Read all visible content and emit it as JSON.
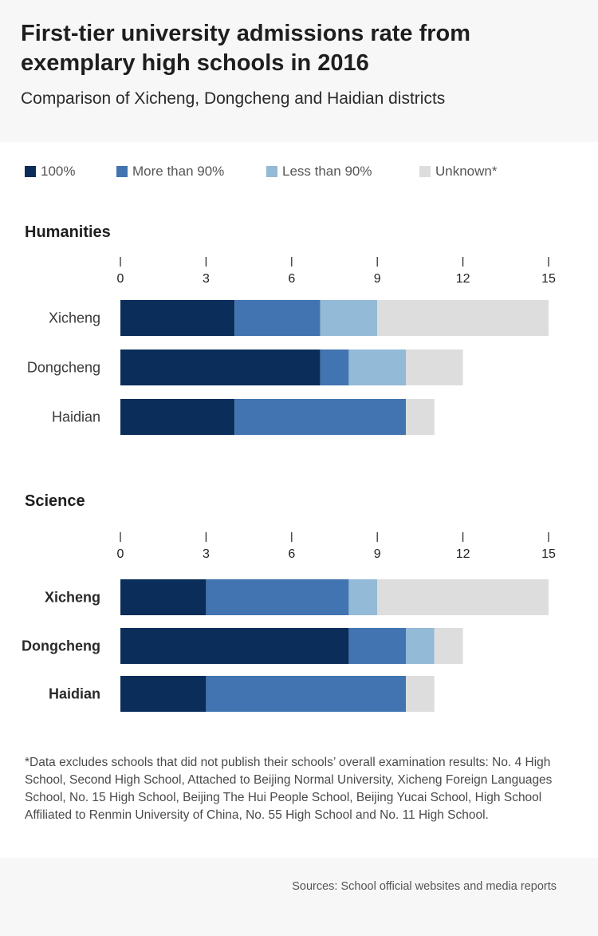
{
  "header": {
    "title": "First-tier university admissions rate from exemplary high schools in 2016",
    "subtitle": "Comparison of Xicheng, Dongcheng and Haidian districts"
  },
  "legend": [
    {
      "label": "100%",
      "color": "#0b2d59"
    },
    {
      "label": "More than 90%",
      "color": "#4174b0"
    },
    {
      "label": "Less than 90%",
      "color": "#93bad6"
    },
    {
      "label": "Unknown*",
      "color": "#dddddd"
    }
  ],
  "chart_data": [
    {
      "type": "bar",
      "orientation": "horizontal",
      "stacked": true,
      "title": "Humanities",
      "categories": [
        "Xicheng",
        "Dongcheng",
        "Haidian"
      ],
      "series": [
        {
          "name": "100%",
          "values": [
            4,
            7,
            4
          ]
        },
        {
          "name": "More than 90%",
          "values": [
            3,
            1,
            6
          ]
        },
        {
          "name": "Less than 90%",
          "values": [
            2,
            2,
            0
          ]
        },
        {
          "name": "Unknown*",
          "values": [
            6,
            2,
            1
          ]
        }
      ],
      "xlim": [
        0,
        15
      ],
      "xticks": [
        0,
        3,
        6,
        9,
        12,
        15
      ],
      "grid": false,
      "legend_position": "top"
    },
    {
      "type": "bar",
      "orientation": "horizontal",
      "stacked": true,
      "title": "Science",
      "categories": [
        "Xicheng",
        "Dongcheng",
        "Haidian"
      ],
      "series": [
        {
          "name": "100%",
          "values": [
            3,
            8,
            3
          ]
        },
        {
          "name": "More than 90%",
          "values": [
            5,
            2,
            7
          ]
        },
        {
          "name": "Less than 90%",
          "values": [
            1,
            1,
            0
          ]
        },
        {
          "name": "Unknown*",
          "values": [
            6,
            1,
            1
          ]
        }
      ],
      "xlim": [
        0,
        15
      ],
      "xticks": [
        0,
        3,
        6,
        9,
        12,
        15
      ],
      "grid": false,
      "legend_position": "top"
    }
  ],
  "footnote": "*Data excludes schools that did not publish their schools’ overall examination results: No. 4 High School, Second High School, Attached to Beijing Normal University, Xicheng Foreign Languages School, No. 15 High School, Beijing The Hui People School, Beijing Yucai School, High School Affiliated to Renmin University of China, No. 55 High School and No. 11 High School.",
  "sources": "Sources: School official websites and media reports"
}
